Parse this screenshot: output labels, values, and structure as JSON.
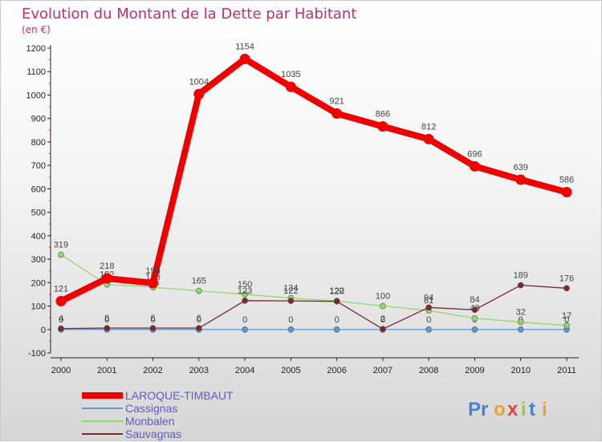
{
  "chart_data": {
    "type": "line",
    "title": "Evolution du Montant de la Dette par Habitant",
    "subtitle": "(en €)",
    "categories": [
      "2000",
      "2001",
      "2002",
      "2003",
      "2004",
      "2005",
      "2006",
      "2007",
      "2008",
      "2009",
      "2010",
      "2011"
    ],
    "ylim": [
      -100,
      1200
    ],
    "yticks": [
      -100,
      0,
      100,
      200,
      300,
      400,
      500,
      600,
      700,
      800,
      900,
      1000,
      1100,
      1200
    ],
    "grid": false,
    "legend_position": "bottom-left",
    "series": [
      {
        "name": "LAROQUE-TIMBAUT",
        "color": "#ee0000",
        "values": [
          121,
          218,
          198,
          1004,
          1154,
          1035,
          921,
          866,
          812,
          696,
          639,
          586
        ],
        "labels": [
          "121",
          "218",
          "198",
          "1004",
          "1154",
          "1035",
          "921",
          "866",
          "812",
          "696",
          "639",
          "586"
        ]
      },
      {
        "name": "Cassignas",
        "color": "#5b9bd5",
        "values": [
          0,
          0,
          0,
          0,
          0,
          0,
          0,
          0,
          0,
          0,
          0,
          0
        ],
        "labels": [
          "0",
          "0",
          "0",
          "0",
          "0",
          "0",
          "0",
          "0",
          "0",
          "0",
          "0",
          "0"
        ]
      },
      {
        "name": "Monbalen",
        "color": "#8fd96a",
        "values": [
          319,
          192,
          180,
          165,
          150,
          134,
          122,
          100,
          81,
          48,
          32,
          17
        ],
        "labels": [
          "319",
          "192",
          "180",
          "165",
          "150",
          "134",
          "122",
          "100",
          "81",
          "48",
          "32",
          "17"
        ]
      },
      {
        "name": "Sauvagnas",
        "color": "#7a2a2a",
        "values": [
          4,
          6,
          6,
          6,
          123,
          122,
          120,
          2,
          94,
          84,
          189,
          176
        ],
        "labels": [
          "4",
          "6",
          "6",
          "6",
          "123",
          "122",
          "120",
          "2",
          "94",
          "84",
          "189",
          "176"
        ]
      }
    ]
  },
  "colors": {
    "title": "#c0306a",
    "axis": "#222222",
    "tick_minor": "#c0306a",
    "label": "#444444"
  },
  "logo": {
    "text": "Proxiti"
  }
}
